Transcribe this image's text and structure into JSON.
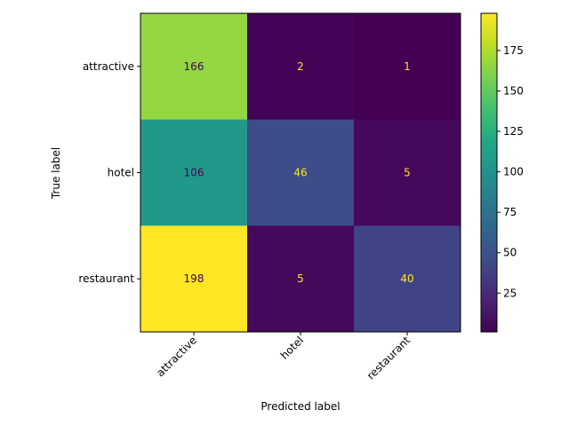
{
  "chart_data": {
    "type": "heatmap",
    "xlabel": "Predicted label",
    "ylabel": "True label",
    "x_categories": [
      "attractive",
      "hotel",
      "restaurant"
    ],
    "y_categories": [
      "attractive",
      "hotel",
      "restaurant"
    ],
    "values": [
      [
        166,
        2,
        1
      ],
      [
        106,
        46,
        5
      ],
      [
        198,
        5,
        40
      ]
    ],
    "colormap": "viridis",
    "vmin": 1,
    "vmax": 198,
    "colorbar_ticks": [
      25,
      50,
      75,
      100,
      125,
      150,
      175
    ],
    "x_tick_rotation": 45,
    "text_color_dark": "#440154",
    "text_color_light": "#fde725"
  }
}
